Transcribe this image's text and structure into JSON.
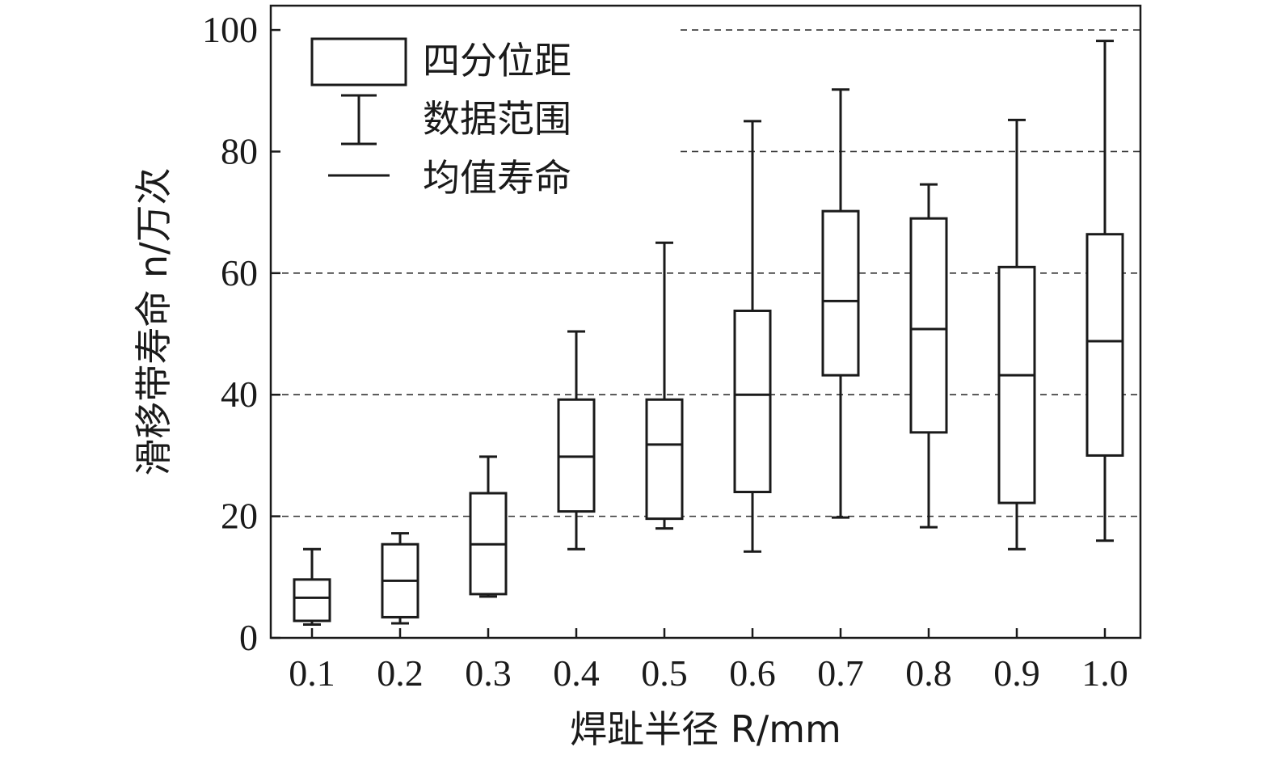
{
  "chart_data": {
    "type": "box",
    "xlabel": "焊趾半径 R/mm",
    "ylabel": "滑移带寿命 n/万次",
    "ylim": [
      0,
      104
    ],
    "yticks": [
      "0",
      "20",
      "40",
      "60",
      "80",
      "100"
    ],
    "grid": "horizontal dashed at 20, 40, 60, 80, 100",
    "legend_position": "top-left",
    "legend": [
      {
        "symbol": "box",
        "label": "四分位距"
      },
      {
        "symbol": "whisker",
        "label": "数据范围"
      },
      {
        "symbol": "line",
        "label": "均值寿命"
      }
    ],
    "categories": [
      "0.1",
      "0.2",
      "0.3",
      "0.4",
      "0.5",
      "0.6",
      "0.7",
      "0.8",
      "0.9",
      "1.0"
    ],
    "boxes": [
      {
        "category": "0.1",
        "min": 2.2,
        "q1": 2.8,
        "mean": 6.6,
        "q3": 9.6,
        "max": 14.6
      },
      {
        "category": "0.2",
        "min": 2.4,
        "q1": 3.4,
        "mean": 9.4,
        "q3": 15.4,
        "max": 17.2
      },
      {
        "category": "0.3",
        "min": 6.8,
        "q1": 7.2,
        "mean": 15.4,
        "q3": 23.8,
        "max": 29.8
      },
      {
        "category": "0.4",
        "min": 14.6,
        "q1": 20.8,
        "mean": 29.8,
        "q3": 39.2,
        "max": 50.4
      },
      {
        "category": "0.5",
        "min": 18.0,
        "q1": 19.6,
        "mean": 31.8,
        "q3": 39.2,
        "max": 65.0
      },
      {
        "category": "0.6",
        "min": 14.2,
        "q1": 24.0,
        "mean": 40.0,
        "q3": 53.8,
        "max": 85.0
      },
      {
        "category": "0.7",
        "min": 19.8,
        "q1": 43.2,
        "mean": 55.4,
        "q3": 70.2,
        "max": 90.2
      },
      {
        "category": "0.8",
        "min": 18.2,
        "q1": 33.8,
        "mean": 50.8,
        "q3": 69.0,
        "max": 74.6
      },
      {
        "category": "0.9",
        "min": 14.6,
        "q1": 22.2,
        "mean": 43.2,
        "q3": 61.0,
        "max": 85.2
      },
      {
        "category": "1.0",
        "min": 16.0,
        "q1": 30.0,
        "mean": 48.8,
        "q3": 66.4,
        "max": 98.2
      }
    ]
  }
}
